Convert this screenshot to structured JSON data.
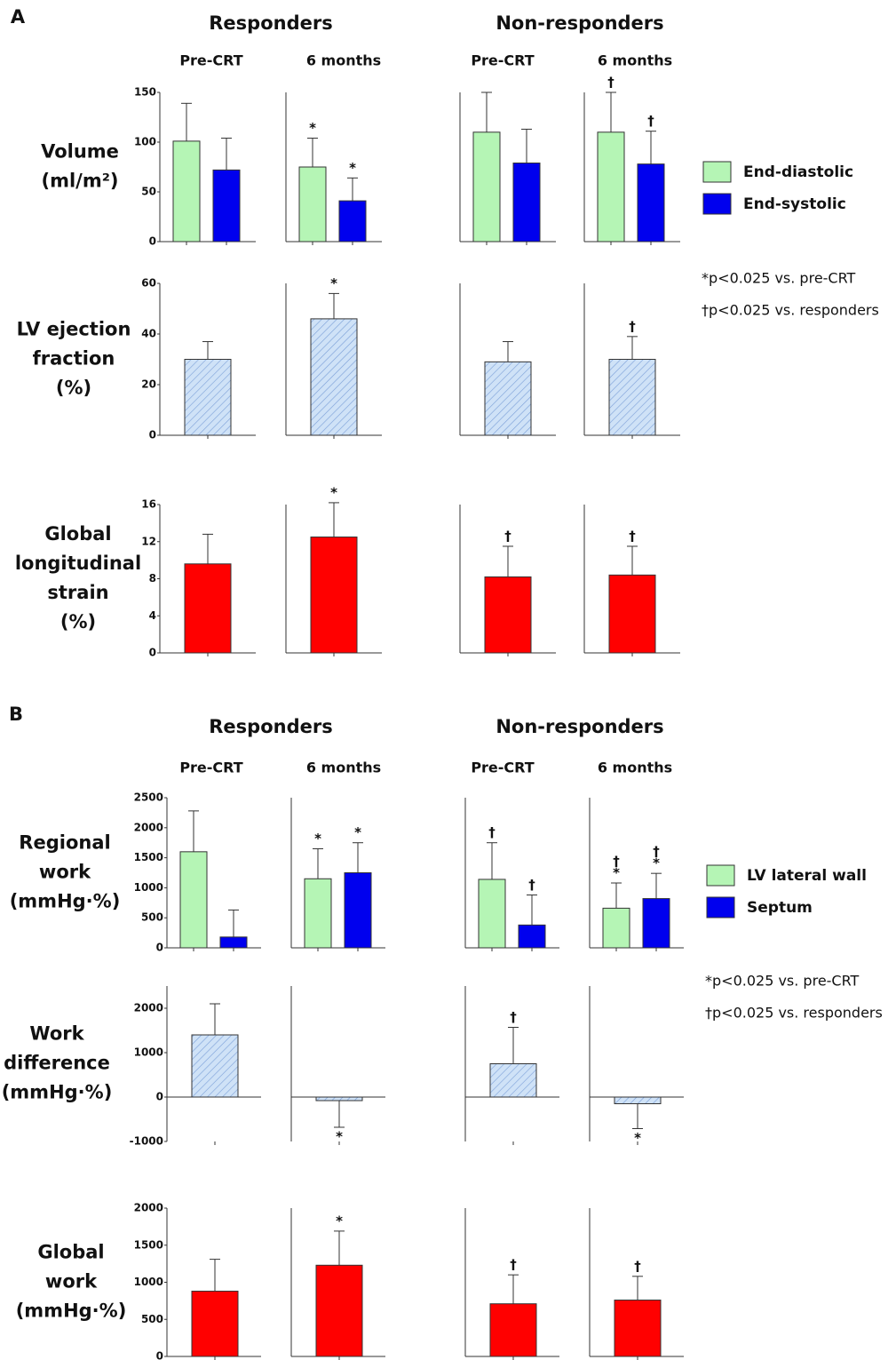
{
  "panels": [
    {
      "label": "A",
      "group_titles": [
        "Responders",
        "Non-responders"
      ],
      "subplot_titles": [
        "Pre-CRT",
        "6 months",
        "Pre-CRT",
        "6 months"
      ],
      "notes": [
        "*p<0.025 vs. pre-CRT",
        "†p<0.025 vs. responders"
      ]
    },
    {
      "label": "B",
      "group_titles": [
        "Responders",
        "Non-responders"
      ],
      "subplot_titles": [
        "Pre-CRT",
        "6 months",
        "Pre-CRT",
        "6 months"
      ],
      "notes": [
        "*p<0.025 vs. pre-CRT",
        "†p<0.025 vs. responders"
      ]
    }
  ],
  "chart_data": [
    {
      "type": "bar",
      "ylabel": [
        "Volume",
        "(ml/m²)"
      ],
      "ylim": [
        0,
        150
      ],
      "yticks": [
        0,
        50,
        100,
        150
      ],
      "series": [
        {
          "name": "End-diastolic",
          "color": "#b5f5b5",
          "values": [
            101,
            75,
            110,
            110
          ],
          "errors": [
            38,
            29,
            40,
            40
          ],
          "annotations": [
            null,
            "*",
            null,
            "†"
          ]
        },
        {
          "name": "End-systolic",
          "color": "#0000ee",
          "values": [
            72,
            41,
            79,
            78
          ],
          "errors": [
            32,
            23,
            34,
            33
          ],
          "annotations": [
            null,
            "*",
            null,
            "†"
          ]
        }
      ]
    },
    {
      "type": "bar",
      "ylabel": [
        "LV ejection",
        "fraction",
        "(%)"
      ],
      "ylim": [
        0,
        60
      ],
      "yticks": [
        0,
        20,
        40,
        60
      ],
      "hatch": true,
      "series": [
        {
          "color": "#cfe2f7",
          "values": [
            30,
            46,
            29,
            30
          ],
          "errors": [
            7,
            10,
            8,
            9
          ],
          "annotations": [
            null,
            "*",
            null,
            "†"
          ]
        }
      ]
    },
    {
      "type": "bar",
      "ylabel": [
        "Global",
        "longitudinal",
        "strain",
        "(%)"
      ],
      "ylim": [
        0,
        16
      ],
      "yticks": [
        0,
        4,
        8,
        12,
        16
      ],
      "series": [
        {
          "color": "#ff0000",
          "values": [
            9.6,
            12.5,
            8.2,
            8.4
          ],
          "errors": [
            3.2,
            3.7,
            3.3,
            3.1
          ],
          "annotations": [
            null,
            "*",
            "†",
            "†"
          ]
        }
      ]
    },
    {
      "type": "bar",
      "ylabel": [
        "Regional",
        "work",
        "(mmHg·%)"
      ],
      "ylim": [
        0,
        2500
      ],
      "yticks": [
        0,
        500,
        1000,
        1500,
        2000,
        2500
      ],
      "series": [
        {
          "name": "LV lateral wall",
          "color": "#b5f5b5",
          "values": [
            1600,
            1150,
            1140,
            660
          ],
          "errors": [
            680,
            500,
            610,
            420
          ],
          "annotations": [
            null,
            "*",
            "†",
            [
              "†",
              "*"
            ]
          ]
        },
        {
          "name": "Septum",
          "color": "#0000ee",
          "values": [
            180,
            1250,
            380,
            820
          ],
          "errors": [
            450,
            500,
            500,
            420
          ],
          "annotations": [
            null,
            "*",
            "†",
            [
              "†",
              "*"
            ]
          ]
        }
      ]
    },
    {
      "type": "bar",
      "ylabel": [
        "Work",
        "difference",
        "(mmHg·%)"
      ],
      "ylim": [
        -1000,
        2500
      ],
      "yticks": [
        -1000,
        0,
        1000,
        2000
      ],
      "hatch": true,
      "series": [
        {
          "color": "#cfe2f7",
          "values": [
            1400,
            -80,
            750,
            -150
          ],
          "errors": [
            700,
            600,
            820,
            560
          ],
          "annotations": [
            null,
            "*",
            "†",
            "*"
          ]
        }
      ]
    },
    {
      "type": "bar",
      "ylabel": [
        "Global",
        "work",
        "(mmHg·%)"
      ],
      "ylim": [
        0,
        2000
      ],
      "yticks": [
        0,
        500,
        1000,
        1500,
        2000
      ],
      "series": [
        {
          "color": "#ff0000",
          "values": [
            880,
            1230,
            710,
            760
          ],
          "errors": [
            430,
            460,
            390,
            320
          ],
          "annotations": [
            null,
            "*",
            "†",
            "†"
          ]
        }
      ]
    }
  ]
}
